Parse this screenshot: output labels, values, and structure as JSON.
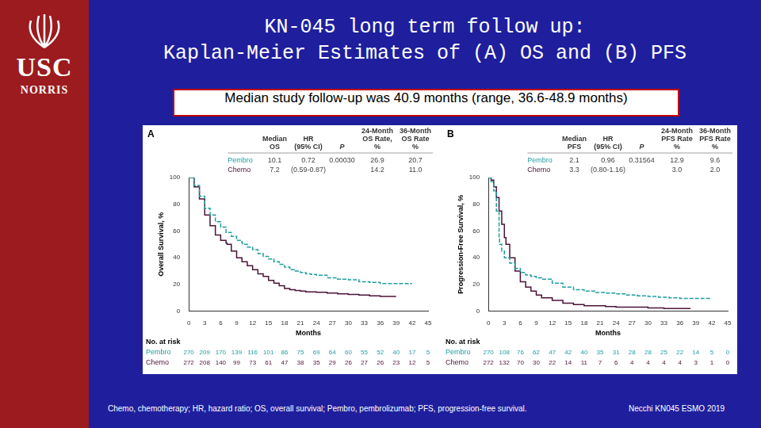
{
  "page": {
    "title": [
      "KN-045 long term follow up:",
      "Kaplan-Meier Estimates of (A) OS and (B) PFS"
    ],
    "logo": [
      "USC",
      "NORRIS"
    ],
    "subtitle": "Median study follow-up was 40.9 months (range, 36.6-48.9 months)",
    "footnote": "Chemo, chemotherapy; HR, hazard ratio; OS, overall survival; Pembro, pembrolizumab; PFS, progression-free survival.",
    "source": "Necchi KN045 ESMO 2019"
  },
  "chart_data": [
    {
      "type": "line",
      "panel": "A",
      "xlabel": "Months",
      "ylabel": "Overall Survival, %",
      "xlim": [
        0,
        45
      ],
      "xticks": [
        0,
        3,
        6,
        9,
        12,
        15,
        18,
        21,
        24,
        27,
        30,
        33,
        36,
        39,
        42,
        45
      ],
      "ylim": [
        0,
        100
      ],
      "yticks": [
        0,
        20,
        40,
        60,
        80,
        100
      ],
      "grid": false,
      "series": [
        {
          "name": "Pembro",
          "color": "#1f9ea0",
          "line_style": "dashed",
          "x": [
            0,
            1,
            2,
            3,
            4,
            5,
            6,
            7,
            8,
            9,
            10,
            10.1,
            11,
            12,
            13,
            14,
            15,
            16,
            17,
            18,
            19,
            20,
            21,
            22,
            23,
            24,
            26,
            28,
            30,
            32,
            34,
            36,
            38,
            40,
            42
          ],
          "values": [
            100,
            94,
            86,
            77,
            72,
            67,
            63,
            59,
            56,
            53,
            51,
            50,
            48,
            46,
            43,
            41,
            39,
            37,
            35,
            33,
            31,
            30,
            29,
            28,
            27.5,
            26.9,
            25,
            24,
            23.5,
            22,
            21.5,
            20.7,
            20.7,
            20.7,
            20.7
          ]
        },
        {
          "name": "Chemo",
          "color": "#4a1438",
          "line_style": "solid",
          "x": [
            0,
            1,
            2,
            3,
            4,
            5,
            6,
            7,
            7.2,
            8,
            9,
            10,
            11,
            12,
            13,
            14,
            15,
            16,
            17,
            18,
            19,
            20,
            21,
            22,
            24,
            26,
            28,
            30,
            32,
            34,
            36,
            38,
            39
          ],
          "values": [
            100,
            93,
            84,
            72,
            64,
            57,
            53,
            51,
            50,
            45,
            40,
            37,
            34,
            31,
            28,
            26,
            23,
            21,
            19,
            17,
            16,
            15.5,
            15,
            14.5,
            14.2,
            13.5,
            13,
            12.5,
            12,
            11.5,
            11.0,
            11.0,
            11.0
          ]
        }
      ],
      "stats_table": {
        "header": [
          null,
          [
            "Median",
            "OS"
          ],
          [
            "HR",
            "(95% CI)"
          ],
          [
            "P"
          ],
          [
            "24-Month",
            "OS Rate,",
            "%"
          ],
          [
            "36-Month",
            "OS Rate",
            "%"
          ]
        ],
        "rows": [
          [
            "Pembro",
            "10.1",
            "0.72",
            "0.00030",
            "26.9",
            "20.7"
          ],
          [
            "Chemo",
            "7.2",
            "(0.59-0.87)",
            null,
            "14.2",
            "11.0"
          ]
        ]
      },
      "risk_table": {
        "title": "No. at risk",
        "rows": [
          {
            "name": "Pembro",
            "values": [
              270,
              209,
              170,
              139,
              116,
              101,
              86,
              75,
              69,
              64,
              60,
              55,
              52,
              40,
              17,
              5
            ]
          },
          {
            "name": "Chemo",
            "values": [
              272,
              208,
              140,
              99,
              73,
              61,
              47,
              38,
              35,
              29,
              26,
              27,
              26,
              23,
              12,
              5
            ]
          }
        ]
      }
    },
    {
      "type": "line",
      "panel": "B",
      "xlabel": "Months",
      "ylabel": "Progression-Free Survival, %",
      "xlim": [
        0,
        45
      ],
      "xticks": [
        0,
        3,
        6,
        9,
        12,
        15,
        18,
        21,
        24,
        27,
        30,
        33,
        36,
        39,
        42,
        45
      ],
      "ylim": [
        0,
        100
      ],
      "yticks": [
        0,
        20,
        40,
        60,
        80,
        100
      ],
      "grid": false,
      "series": [
        {
          "name": "Pembro",
          "color": "#1f9ea0",
          "line_style": "dashed",
          "x": [
            0,
            0.5,
            1,
            1.5,
            2,
            2.1,
            2.5,
            3,
            4,
            5,
            6,
            7,
            8,
            9,
            10,
            12,
            14,
            16,
            18,
            20,
            22,
            24,
            26,
            28,
            30,
            32,
            34,
            36,
            38,
            40,
            42
          ],
          "values": [
            100,
            97,
            90,
            75,
            55,
            50,
            45,
            40,
            36,
            32,
            29,
            27,
            26,
            25,
            24,
            21,
            18,
            16,
            15,
            14,
            13.5,
            12.9,
            12,
            11.5,
            11,
            10.5,
            10,
            9.6,
            9.6,
            9.6,
            9.6
          ]
        },
        {
          "name": "Chemo",
          "color": "#4a1438",
          "line_style": "solid",
          "x": [
            0,
            0.5,
            1,
            1.5,
            2,
            2.5,
            3,
            3.3,
            4,
            5,
            6,
            7,
            8,
            9,
            10,
            12,
            14,
            16,
            18,
            20,
            22,
            24,
            27,
            30,
            33,
            36,
            38
          ],
          "values": [
            100,
            98,
            93,
            85,
            75,
            65,
            55,
            50,
            40,
            30,
            22,
            18,
            15,
            12,
            10,
            8,
            6,
            5,
            4,
            4,
            3.5,
            3.0,
            3.0,
            2.5,
            2.0,
            2.0,
            2.0
          ]
        }
      ],
      "stats_table": {
        "header": [
          null,
          [
            "Median",
            "PFS"
          ],
          [
            "HR",
            "(95% CI)"
          ],
          [
            "P"
          ],
          [
            "24-Month",
            "PFS Rate",
            "%"
          ],
          [
            "36-Month",
            "PFS Rate",
            "%"
          ]
        ],
        "rows": [
          [
            "Pembro",
            "2.1",
            "0.96",
            "0.31564",
            "12.9",
            "9.6"
          ],
          [
            "Chemo",
            "3.3",
            "(0.80-1.16)",
            null,
            "3.0",
            "2.0"
          ]
        ]
      },
      "risk_table": {
        "title": "No. at risk",
        "rows": [
          {
            "name": "Pembro",
            "values": [
              270,
              108,
              76,
              62,
              47,
              42,
              40,
              35,
              31,
              28,
              28,
              25,
              22,
              14,
              5,
              0
            ]
          },
          {
            "name": "Chemo",
            "values": [
              272,
              132,
              70,
              30,
              22,
              14,
              11,
              7,
              6,
              4,
              4,
              4,
              4,
              3,
              1,
              0
            ]
          }
        ]
      }
    }
  ]
}
